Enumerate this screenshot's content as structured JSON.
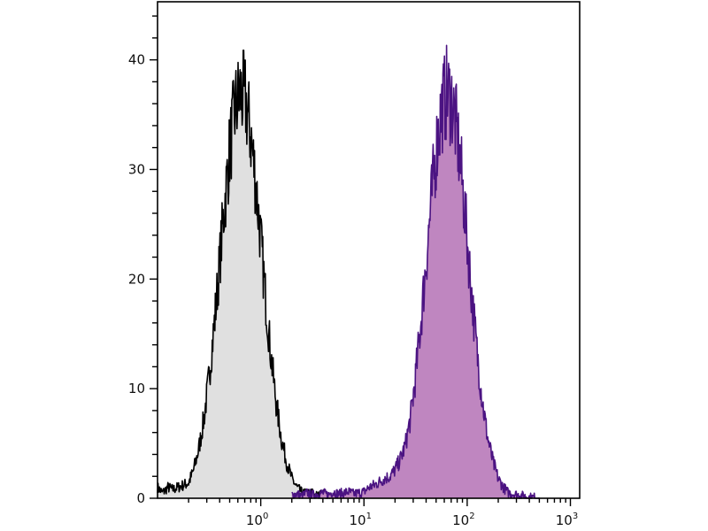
{
  "chart_data": {
    "type": "area",
    "title": "",
    "xlabel": "",
    "ylabel": "",
    "x_scale": "log",
    "xlim": [
      0.1,
      1230
    ],
    "ylim": [
      0,
      45.3
    ],
    "grid": false,
    "y_ticks": [
      {
        "value": 0,
        "label": "0"
      },
      {
        "value": 10,
        "label": "10"
      },
      {
        "value": 20,
        "label": "20"
      },
      {
        "value": 30,
        "label": "30"
      },
      {
        "value": 40,
        "label": "40"
      }
    ],
    "y_minor_step": 2,
    "x_ticks": [
      {
        "value": 1,
        "base": "10",
        "exp": "0"
      },
      {
        "value": 10,
        "base": "10",
        "exp": "1"
      },
      {
        "value": 100,
        "base": "10",
        "exp": "2"
      },
      {
        "value": 1000,
        "base": "10",
        "exp": "3"
      }
    ],
    "series": [
      {
        "fill": "#e0e0e0",
        "stroke": "#000000",
        "x": [
          0.1,
          0.112,
          0.126,
          0.141,
          0.158,
          0.178,
          0.2,
          0.224,
          0.251,
          0.282,
          0.316,
          0.355,
          0.398,
          0.447,
          0.501,
          0.562,
          0.631,
          0.708,
          0.794,
          0.891,
          1,
          1.12,
          1.26,
          1.41,
          1.58,
          1.78,
          2,
          2.24,
          2.51,
          2.82,
          3.16,
          3.55,
          3.98,
          4.47,
          5.01
        ],
        "y": [
          1,
          0.5,
          1,
          0.8,
          1,
          1.2,
          1.4,
          2.6,
          4.5,
          7.3,
          11.1,
          15.9,
          21.3,
          26.9,
          31.8,
          35.4,
          37,
          36.3,
          33.4,
          29,
          23.6,
          18,
          12.9,
          8.7,
          5.5,
          3.3,
          1.8,
          1,
          0.5,
          0.4,
          0.5,
          0.2,
          0.4,
          0.2,
          0
        ]
      },
      {
        "fill": "#bf86c0",
        "stroke": "#4b1382",
        "x": [
          2,
          2.24,
          2.51,
          2.82,
          3.16,
          3.55,
          3.98,
          4.47,
          5.01,
          5.62,
          6.31,
          7.08,
          7.94,
          8.91,
          10,
          11.2,
          12.6,
          14.1,
          15.8,
          17.8,
          20,
          22.4,
          25.1,
          28.2,
          31.6,
          35.5,
          39.8,
          44.7,
          50.1,
          56.2,
          63.1,
          70.8,
          79.4,
          89.1,
          100,
          112,
          126,
          141,
          158,
          178,
          200,
          224,
          251,
          282,
          316,
          355,
          398,
          447,
          501
        ],
        "y": [
          0.3,
          0.4,
          0.2,
          0.5,
          0.3,
          0.4,
          0.5,
          0.3,
          0.6,
          0.4,
          0.5,
          0.6,
          0.4,
          0.5,
          0.6,
          1,
          1.2,
          1.5,
          1.8,
          2,
          2.6,
          3.5,
          4.8,
          7.3,
          11.1,
          15.9,
          21.3,
          26.9,
          31.8,
          35.4,
          37,
          36.3,
          33.4,
          29,
          23.6,
          18,
          12.9,
          8.7,
          5.5,
          3.3,
          1.8,
          1,
          0.5,
          0.4,
          0.3,
          0.2,
          0.1,
          0.1,
          0
        ]
      }
    ]
  }
}
